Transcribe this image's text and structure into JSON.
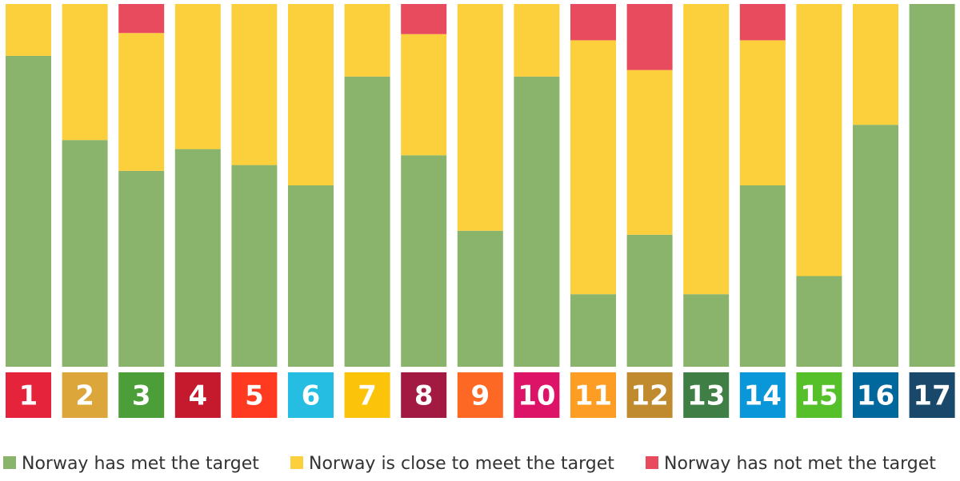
{
  "chart_data": {
    "type": "bar",
    "stacked": "100%",
    "categories": [
      "1",
      "2",
      "3",
      "4",
      "5",
      "6",
      "7",
      "8",
      "9",
      "10",
      "11",
      "12",
      "13",
      "14",
      "15",
      "16",
      "17"
    ],
    "series": [
      {
        "name": "Norway has met the target",
        "color": "#8ab46b",
        "values": [
          85.7,
          62.5,
          54.0,
          60.0,
          55.6,
          50.0,
          80.0,
          58.3,
          37.5,
          80.0,
          20.0,
          36.4,
          20.0,
          50.0,
          25.0,
          66.7,
          100.0
        ]
      },
      {
        "name": "Norway is close to meet the target",
        "color": "#fccf3c",
        "values": [
          14.3,
          37.5,
          38.0,
          40.0,
          44.4,
          50.0,
          20.0,
          33.4,
          62.5,
          20.0,
          70.0,
          45.4,
          80.0,
          40.0,
          75.0,
          33.3,
          0.0
        ]
      },
      {
        "name": "Norway has not met the target",
        "color": "#e94b5e",
        "values": [
          0,
          0,
          8.0,
          0,
          0,
          0,
          0,
          8.3,
          0,
          0,
          10.0,
          18.2,
          0,
          10.0,
          0,
          0,
          0
        ]
      }
    ],
    "category_colors": [
      "#e5243b",
      "#dda63a",
      "#4c9f38",
      "#c5192d",
      "#ff3a21",
      "#26bde2",
      "#fcc30b",
      "#a21942",
      "#fd6925",
      "#dd1367",
      "#fd9d24",
      "#bf8b2e",
      "#3f7e44",
      "#0a97d9",
      "#56c02b",
      "#00689d",
      "#19486a"
    ],
    "ylim": [
      0,
      100
    ],
    "grid": false,
    "legend_position": "bottom"
  }
}
